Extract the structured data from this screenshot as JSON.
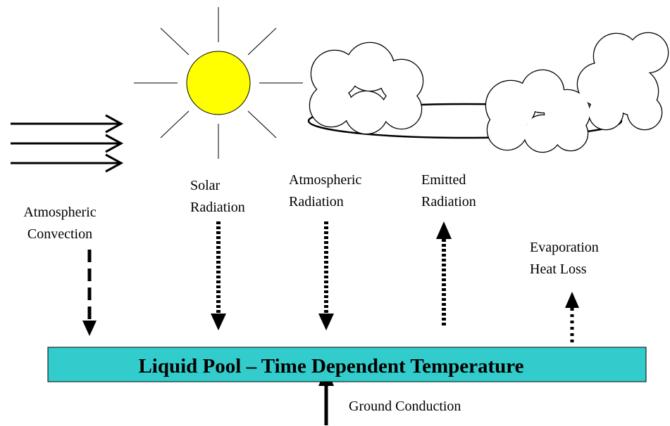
{
  "labels": [
    {
      "lines": [
        "Atmospheric",
        "Convection"
      ]
    },
    {
      "lines": [
        "Solar",
        "Radiation"
      ]
    },
    {
      "lines": [
        "Atmospheric",
        "Radiation"
      ]
    },
    {
      "lines": [
        "Emitted",
        "Radiation"
      ]
    },
    {
      "lines": [
        "Evaporation",
        "Heat Loss"
      ]
    }
  ],
  "pool": "Liquid Pool – Time Dependent Temperature",
  "ground": "Ground Conduction"
}
